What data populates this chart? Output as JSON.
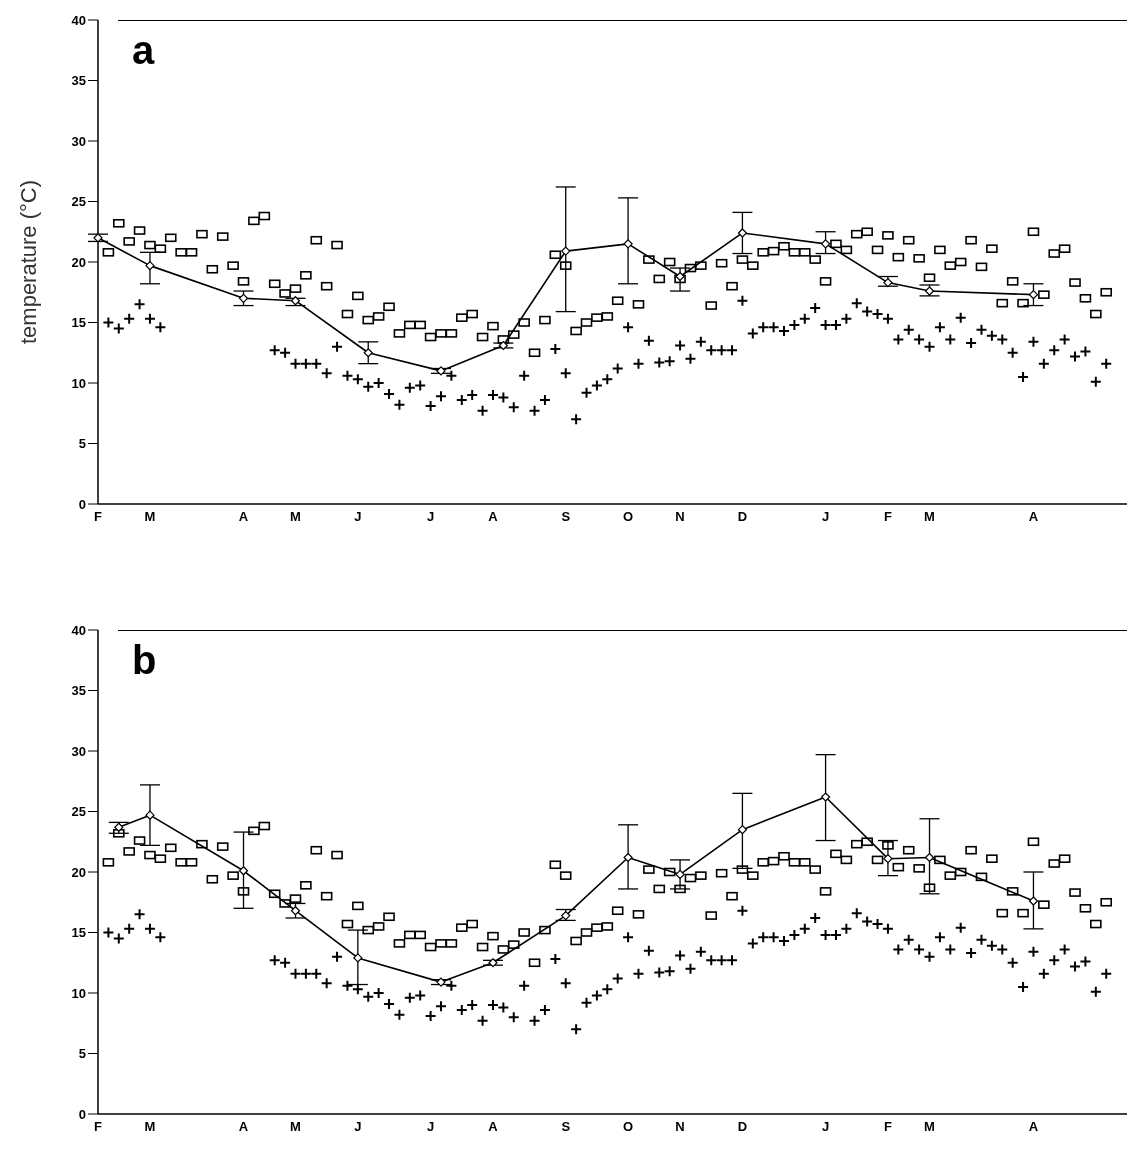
{
  "chart_data": [
    {
      "type": "scatter",
      "annotations": [
        "a"
      ],
      "ylabel": "temperature (°C)",
      "ylim": [
        0,
        40
      ],
      "yticks": [
        0,
        5,
        10,
        15,
        20,
        25,
        30,
        35,
        40
      ],
      "categories": [
        "F",
        null,
        null,
        null,
        null,
        "M",
        null,
        null,
        null,
        null,
        null,
        null,
        null,
        null,
        "A",
        null,
        null,
        null,
        null,
        "M",
        null,
        null,
        null,
        null,
        null,
        "J",
        null,
        null,
        null,
        null,
        null,
        null,
        "J",
        null,
        null,
        null,
        null,
        null,
        "A",
        null,
        null,
        null,
        null,
        null,
        null,
        "S",
        null,
        null,
        null,
        null,
        null,
        "O",
        null,
        null,
        null,
        null,
        "N",
        null,
        null,
        null,
        null,
        null,
        "D",
        null,
        null,
        null,
        null,
        null,
        null,
        null,
        "J",
        null,
        null,
        null,
        null,
        null,
        "F",
        null,
        null,
        null,
        "M",
        null,
        null,
        null,
        null,
        null,
        null,
        null,
        null,
        null,
        "A",
        null,
        null,
        null,
        null,
        null,
        null,
        null,
        null,
        null
      ],
      "grid": false,
      "legend": false,
      "series": [
        {
          "marker": "square",
          "color": "#000000",
          "values": [
            null,
            20.8,
            23.2,
            21.7,
            22.6,
            21.4,
            21.1,
            22.0,
            20.8,
            20.8,
            22.3,
            19.4,
            22.1,
            19.7,
            18.4,
            23.4,
            23.8,
            18.2,
            17.4,
            17.8,
            18.9,
            21.8,
            18.0,
            21.4,
            15.7,
            17.2,
            15.2,
            15.5,
            16.3,
            14.1,
            14.8,
            14.8,
            13.8,
            14.1,
            14.1,
            15.4,
            15.7,
            13.8,
            14.7,
            13.6,
            14.0,
            15.0,
            12.5,
            15.2,
            20.6,
            19.7,
            14.3,
            15.0,
            15.4,
            15.5,
            16.8,
            null,
            16.5,
            20.2,
            18.6,
            20.0,
            18.6,
            19.5,
            19.7,
            16.4,
            19.9,
            18.0,
            20.2,
            19.7,
            20.8,
            20.9,
            21.3,
            20.8,
            20.8,
            20.2,
            18.4,
            21.5,
            21.0,
            22.3,
            22.5,
            21.0,
            22.2,
            20.4,
            21.8,
            20.3,
            18.7,
            21.0,
            19.7,
            20.0,
            21.8,
            19.6,
            21.1,
            16.6,
            18.4,
            16.6,
            22.5,
            17.3,
            20.7,
            21.1,
            18.3,
            17.0,
            15.7,
            17.5,
            null,
            null
          ]
        },
        {
          "marker": "cross",
          "color": "#000000",
          "values": [
            null,
            15.0,
            14.5,
            15.3,
            16.5,
            15.3,
            14.6,
            null,
            null,
            null,
            null,
            null,
            null,
            null,
            null,
            null,
            null,
            12.7,
            12.5,
            11.6,
            11.6,
            11.6,
            10.8,
            13.0,
            10.6,
            10.3,
            9.7,
            10.0,
            9.1,
            8.2,
            9.6,
            9.8,
            8.1,
            8.9,
            10.6,
            8.6,
            9.0,
            7.7,
            9.0,
            8.8,
            8.0,
            10.6,
            7.7,
            8.6,
            12.8,
            10.8,
            7.0,
            9.2,
            9.8,
            10.3,
            11.2,
            14.6,
            11.6,
            13.5,
            11.7,
            11.8,
            13.1,
            12.0,
            13.4,
            12.7,
            12.7,
            12.7,
            16.8,
            14.1,
            14.6,
            14.6,
            14.3,
            14.8,
            15.3,
            16.2,
            14.8,
            14.8,
            15.3,
            16.6,
            15.9,
            15.7,
            15.3,
            13.6,
            14.4,
            13.6,
            13.0,
            14.6,
            13.6,
            15.4,
            13.3,
            14.4,
            13.9,
            13.6,
            12.5,
            10.5,
            13.4,
            11.6,
            12.7,
            13.6,
            12.2,
            12.6,
            10.1,
            11.6,
            null,
            null
          ]
        },
        {
          "type": "line",
          "marker": "diamond",
          "line_style": "solid",
          "color": "#000000",
          "values": [
            22.0,
            null,
            null,
            null,
            null,
            19.7,
            null,
            null,
            null,
            null,
            null,
            null,
            null,
            null,
            17.0,
            null,
            null,
            null,
            null,
            16.8,
            null,
            null,
            null,
            null,
            null,
            null,
            12.5,
            null,
            null,
            null,
            null,
            null,
            null,
            11.0,
            null,
            null,
            null,
            null,
            null,
            13.1,
            null,
            null,
            null,
            null,
            null,
            20.9,
            null,
            null,
            null,
            null,
            null,
            21.5,
            null,
            null,
            null,
            null,
            18.8,
            null,
            null,
            null,
            null,
            null,
            22.4,
            null,
            null,
            null,
            null,
            null,
            null,
            null,
            21.5,
            null,
            null,
            null,
            null,
            null,
            18.3,
            null,
            null,
            null,
            17.6,
            null,
            null,
            null,
            null,
            null,
            null,
            null,
            null,
            null,
            17.3,
            null,
            null,
            null,
            null,
            null,
            null,
            null,
            null,
            null
          ],
          "errors": [
            [
              21.7,
              22.3
            ],
            null,
            null,
            null,
            null,
            [
              18.2,
              20.8
            ],
            null,
            null,
            null,
            null,
            null,
            null,
            null,
            null,
            [
              16.4,
              17.6
            ],
            null,
            null,
            null,
            null,
            [
              16.4,
              17.0
            ],
            null,
            null,
            null,
            null,
            null,
            null,
            [
              11.6,
              13.4
            ],
            null,
            null,
            null,
            null,
            null,
            null,
            [
              10.8,
              11.2
            ],
            null,
            null,
            null,
            null,
            null,
            [
              12.9,
              13.3
            ],
            null,
            null,
            null,
            null,
            null,
            [
              15.9,
              26.2
            ],
            null,
            null,
            null,
            null,
            null,
            [
              18.2,
              25.3
            ],
            null,
            null,
            null,
            null,
            [
              17.6,
              19.5
            ],
            null,
            null,
            null,
            null,
            null,
            [
              20.7,
              24.1
            ],
            null,
            null,
            null,
            null,
            null,
            null,
            null,
            [
              20.7,
              22.5
            ],
            null,
            null,
            null,
            null,
            null,
            [
              18.0,
              18.8
            ],
            null,
            null,
            null,
            [
              17.2,
              18.1
            ],
            null,
            null,
            null,
            null,
            null,
            null,
            null,
            null,
            null,
            [
              16.4,
              18.2
            ],
            null,
            null,
            null,
            null,
            null,
            null,
            null,
            null,
            null
          ]
        }
      ]
    },
    {
      "type": "scatter",
      "annotations": [
        "b"
      ],
      "ylim": [
        0,
        40
      ],
      "yticks": [
        0,
        5,
        10,
        15,
        20,
        25,
        30,
        35,
        40
      ],
      "categories": [
        "F",
        null,
        null,
        null,
        null,
        "M",
        null,
        null,
        null,
        null,
        null,
        null,
        null,
        null,
        "A",
        null,
        null,
        null,
        null,
        "M",
        null,
        null,
        null,
        null,
        null,
        "J",
        null,
        null,
        null,
        null,
        null,
        null,
        "J",
        null,
        null,
        null,
        null,
        null,
        "A",
        null,
        null,
        null,
        null,
        null,
        null,
        "S",
        null,
        null,
        null,
        null,
        null,
        "O",
        null,
        null,
        null,
        null,
        "N",
        null,
        null,
        null,
        null,
        null,
        "D",
        null,
        null,
        null,
        null,
        null,
        null,
        null,
        "J",
        null,
        null,
        null,
        null,
        null,
        "F",
        null,
        null,
        null,
        "M",
        null,
        null,
        null,
        null,
        null,
        null,
        null,
        null,
        null,
        "A",
        null,
        null,
        null,
        null,
        null,
        null,
        null,
        null,
        null
      ],
      "grid": false,
      "legend": false,
      "series": [
        {
          "marker": "square",
          "color": "#000000",
          "values": [
            null,
            20.8,
            23.2,
            21.7,
            22.6,
            21.4,
            21.1,
            22.0,
            20.8,
            20.8,
            22.3,
            19.4,
            22.1,
            19.7,
            18.4,
            23.4,
            23.8,
            18.2,
            17.4,
            17.8,
            18.9,
            21.8,
            18.0,
            21.4,
            15.7,
            17.2,
            15.2,
            15.5,
            16.3,
            14.1,
            14.8,
            14.8,
            13.8,
            14.1,
            14.1,
            15.4,
            15.7,
            13.8,
            14.7,
            13.6,
            14.0,
            15.0,
            12.5,
            15.2,
            20.6,
            19.7,
            14.3,
            15.0,
            15.4,
            15.5,
            16.8,
            null,
            16.5,
            20.2,
            18.6,
            20.0,
            18.6,
            19.5,
            19.7,
            16.4,
            19.9,
            18.0,
            20.2,
            19.7,
            20.8,
            20.9,
            21.3,
            20.8,
            20.8,
            20.2,
            18.4,
            21.5,
            21.0,
            22.3,
            22.5,
            21.0,
            22.2,
            20.4,
            21.8,
            20.3,
            18.7,
            21.0,
            19.7,
            20.0,
            21.8,
            19.6,
            21.1,
            16.6,
            18.4,
            16.6,
            22.5,
            17.3,
            20.7,
            21.1,
            18.3,
            17.0,
            15.7,
            17.5,
            null,
            null
          ]
        },
        {
          "marker": "cross",
          "color": "#000000",
          "values": [
            null,
            15.0,
            14.5,
            15.3,
            16.5,
            15.3,
            14.6,
            null,
            null,
            null,
            null,
            null,
            null,
            null,
            null,
            null,
            null,
            12.7,
            12.5,
            11.6,
            11.6,
            11.6,
            10.8,
            13.0,
            10.6,
            10.3,
            9.7,
            10.0,
            9.1,
            8.2,
            9.6,
            9.8,
            8.1,
            8.9,
            10.6,
            8.6,
            9.0,
            7.7,
            9.0,
            8.8,
            8.0,
            10.6,
            7.7,
            8.6,
            12.8,
            10.8,
            7.0,
            9.2,
            9.8,
            10.3,
            11.2,
            14.6,
            11.6,
            13.5,
            11.7,
            11.8,
            13.1,
            12.0,
            13.4,
            12.7,
            12.7,
            12.7,
            16.8,
            14.1,
            14.6,
            14.6,
            14.3,
            14.8,
            15.3,
            16.2,
            14.8,
            14.8,
            15.3,
            16.6,
            15.9,
            15.7,
            15.3,
            13.6,
            14.4,
            13.6,
            13.0,
            14.6,
            13.6,
            15.4,
            13.3,
            14.4,
            13.9,
            13.6,
            12.5,
            10.5,
            13.4,
            11.6,
            12.7,
            13.6,
            12.2,
            12.6,
            10.1,
            11.6,
            null,
            null
          ]
        },
        {
          "type": "line",
          "marker": "diamond",
          "line_style": "solid",
          "color": "#000000",
          "values": [
            null,
            null,
            23.7,
            null,
            null,
            24.7,
            null,
            null,
            null,
            null,
            null,
            null,
            null,
            null,
            20.1,
            null,
            null,
            null,
            null,
            16.8,
            null,
            null,
            null,
            null,
            null,
            12.9,
            null,
            null,
            null,
            null,
            null,
            null,
            null,
            10.9,
            null,
            null,
            null,
            null,
            12.5,
            null,
            null,
            null,
            null,
            null,
            null,
            16.4,
            null,
            null,
            null,
            null,
            null,
            21.2,
            null,
            null,
            null,
            null,
            19.8,
            null,
            null,
            null,
            null,
            null,
            23.5,
            null,
            null,
            null,
            null,
            null,
            null,
            null,
            26.2,
            null,
            null,
            null,
            null,
            null,
            21.1,
            null,
            null,
            null,
            21.2,
            null,
            null,
            null,
            null,
            null,
            null,
            null,
            null,
            null,
            17.6,
            null,
            null,
            null,
            null,
            null,
            null,
            null,
            null,
            null
          ],
          "errors": [
            null,
            null,
            [
              23.2,
              24.1
            ],
            null,
            null,
            [
              22.2,
              27.2
            ],
            null,
            null,
            null,
            null,
            null,
            null,
            null,
            null,
            [
              17.0,
              23.3
            ],
            null,
            null,
            null,
            null,
            [
              16.2,
              17.4
            ],
            null,
            null,
            null,
            null,
            null,
            [
              10.7,
              15.2
            ],
            null,
            null,
            null,
            null,
            null,
            null,
            null,
            [
              10.7,
              11.1
            ],
            null,
            null,
            null,
            null,
            [
              12.3,
              12.7
            ],
            null,
            null,
            null,
            null,
            null,
            null,
            [
              16.0,
              16.9
            ],
            null,
            null,
            null,
            null,
            null,
            [
              18.6,
              23.9
            ],
            null,
            null,
            null,
            null,
            [
              18.6,
              21.0
            ],
            null,
            null,
            null,
            null,
            null,
            [
              20.3,
              26.5
            ],
            null,
            null,
            null,
            null,
            null,
            null,
            null,
            [
              22.6,
              29.7
            ],
            null,
            null,
            null,
            null,
            null,
            [
              19.7,
              22.6
            ],
            null,
            null,
            null,
            [
              18.2,
              24.4
            ],
            null,
            null,
            null,
            null,
            null,
            null,
            null,
            null,
            null,
            [
              15.3,
              20.0
            ],
            null,
            null,
            null,
            null,
            null,
            null,
            null,
            null,
            null
          ]
        }
      ]
    }
  ]
}
